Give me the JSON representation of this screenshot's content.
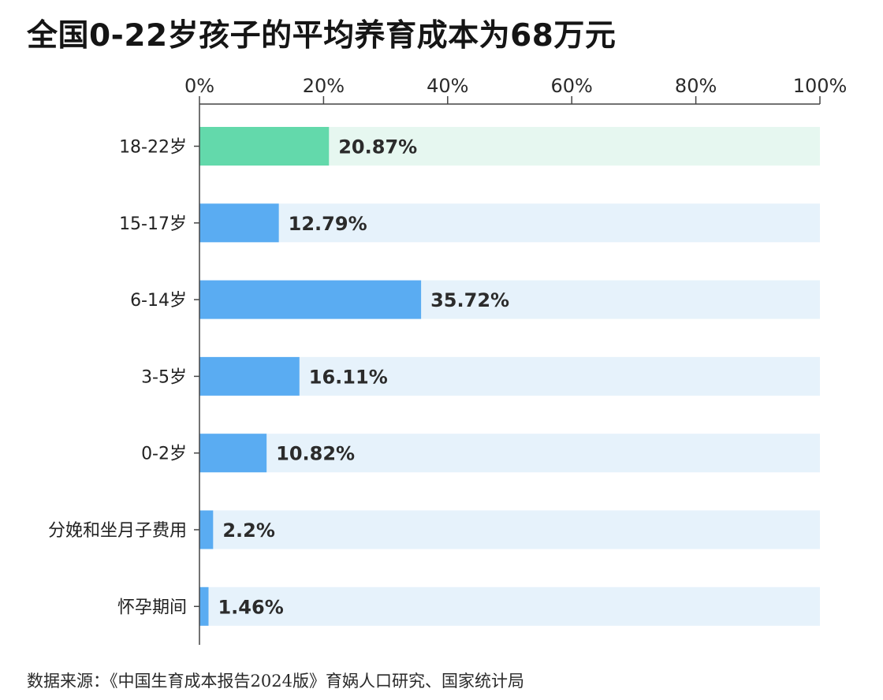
{
  "title": "全国0-22岁孩子的平均养育成本为68万元",
  "source": "数据来源：《中国生育成本报告2024版》育娲人口研究、国家统计局",
  "colors": {
    "highlight_bar": "#63d9ab",
    "highlight_track": "#e6f7f0",
    "bar": "#5aacf2",
    "track": "#e6f2fb",
    "axis": "#444444",
    "text": "#222222"
  },
  "chart_data": {
    "type": "bar",
    "orientation": "horizontal",
    "categories": [
      "18-22岁",
      "15-17岁",
      "6-14岁",
      "3-5岁",
      "0-2岁",
      "分娩和坐月子费用",
      "怀孕期间"
    ],
    "values": [
      20.87,
      12.79,
      35.72,
      16.11,
      10.82,
      2.2,
      1.46
    ],
    "value_labels": [
      "20.87%",
      "12.79%",
      "35.72%",
      "16.11%",
      "10.82%",
      "2.2%",
      "1.46%"
    ],
    "highlighted_category": "18-22岁",
    "xlim": [
      0,
      100
    ],
    "xticks": [
      0,
      20,
      40,
      60,
      80,
      100
    ],
    "xtick_labels": [
      "0%",
      "20%",
      "40%",
      "60%",
      "80%",
      "100%"
    ],
    "x_axis_position": "top",
    "grid": false,
    "legend": "none"
  }
}
